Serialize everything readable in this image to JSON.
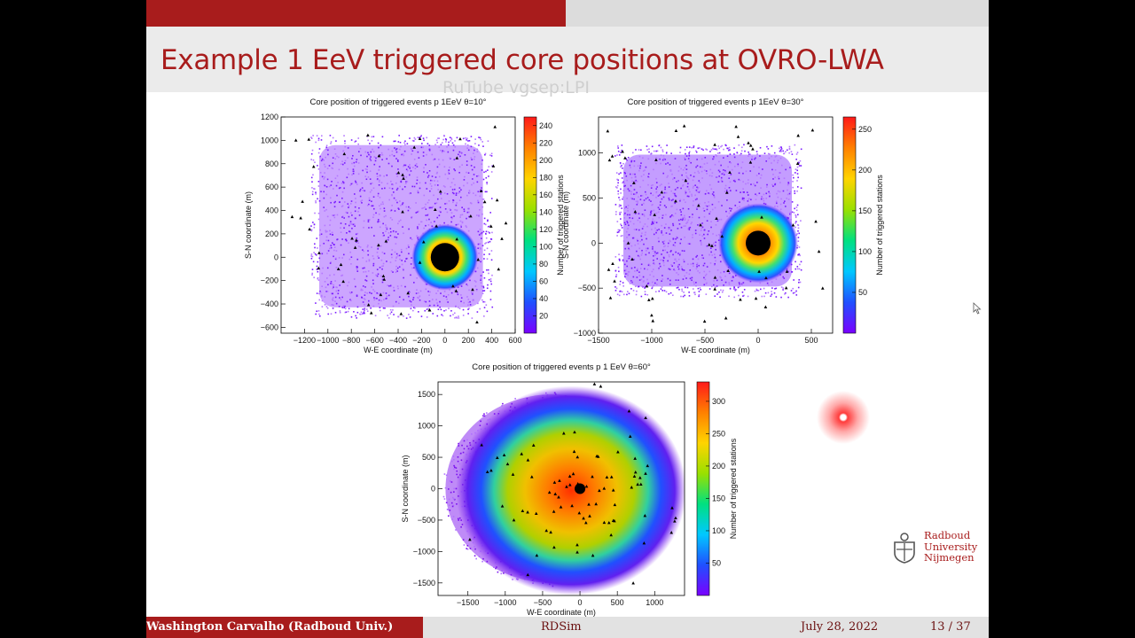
{
  "slide": {
    "title": "Example 1 EeV triggered core positions at OVRO-LWA",
    "watermark": "RuTube vgsep:LPI"
  },
  "colors": {
    "accent_red": "#a81c1c",
    "bar_gray": "#dcdcdc",
    "colormap": [
      "#7a00ff",
      "#2050ff",
      "#00c8ff",
      "#00e080",
      "#9ae000",
      "#ffd400",
      "#ff8000",
      "#ff1a1a"
    ]
  },
  "footer": {
    "author": "Washington Carvalho  (Radboud Univ.)",
    "center": "RDSim",
    "date": "July 28, 2022",
    "page": "13 / 37"
  },
  "logo": {
    "line1": "Radboud",
    "line2": "University",
    "line3": "Nijmegen",
    "icon": "radboud-crest-icon"
  },
  "chart_data": [
    {
      "type": "heatmap",
      "title": "Core position of triggered events p 1EeV θ=10°",
      "xlabel": "W-E coordinate (m)",
      "ylabel": "S-N coordinate (m)",
      "colorbar_label": "Number of triggered stations",
      "xlim": [
        -1400,
        600
      ],
      "ylim": [
        -650,
        1200
      ],
      "xticks": [
        -1200,
        -1000,
        -800,
        -600,
        -400,
        -200,
        0,
        200,
        400,
        600
      ],
      "yticks": [
        -600,
        -400,
        -200,
        0,
        200,
        400,
        600,
        800,
        1000,
        1200
      ],
      "zlim": [
        0,
        250
      ],
      "zticks": [
        20,
        40,
        60,
        80,
        100,
        120,
        140,
        160,
        180,
        200,
        220,
        240
      ],
      "hotspot": {
        "x": 0,
        "y": 0
      },
      "cloud": {
        "x_min": -1150,
        "x_max": 400,
        "y_min": -520,
        "y_max": 1050
      }
    },
    {
      "type": "heatmap",
      "title": "Core position of triggered events p 1EeV θ=30°",
      "xlabel": "W-E coordinate (m)",
      "ylabel": "S-N coordinate (m)",
      "colorbar_label": "Number of triggered stations",
      "xlim": [
        -1500,
        700
      ],
      "ylim": [
        -1000,
        1400
      ],
      "xticks": [
        -1500,
        -1000,
        -500,
        0,
        500
      ],
      "yticks": [
        -1000,
        -500,
        0,
        500,
        1000
      ],
      "zlim": [
        0,
        265
      ],
      "zticks": [
        50,
        100,
        150,
        200,
        250
      ],
      "hotspot": {
        "x": 0,
        "y": 0
      },
      "cloud": {
        "x_min": -1350,
        "x_max": 400,
        "y_min": -600,
        "y_max": 1100
      }
    },
    {
      "type": "heatmap",
      "title": "Core position of triggered events p 1 EeV θ=60°",
      "xlabel": "W-E coordinate (m)",
      "ylabel": "S-N coordinate (m)",
      "colorbar_label": "Number of triggered stations",
      "xlim": [
        -1900,
        1400
      ],
      "ylim": [
        -1700,
        1700
      ],
      "xticks": [
        -1500,
        -1000,
        -500,
        0,
        500,
        1000
      ],
      "yticks": [
        -1500,
        -1000,
        -500,
        0,
        500,
        1000,
        1500
      ],
      "zlim": [
        0,
        330
      ],
      "zticks": [
        50,
        100,
        150,
        200,
        250,
        300
      ],
      "hotspot": {
        "x": 0,
        "y": 0
      },
      "cloud": {
        "x_min": -1800,
        "x_max": 1050,
        "y_min": -1500,
        "y_max": 1500
      }
    }
  ]
}
